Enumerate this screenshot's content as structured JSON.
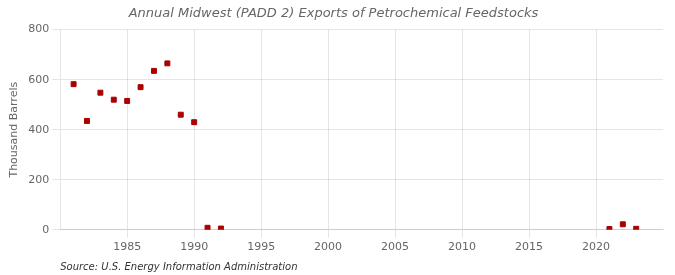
{
  "chart_data": {
    "type": "scatter",
    "title": "Annual Midwest (PADD 2) Exports of Petrochemical Feedstocks",
    "ylabel": "Thousand Barrels",
    "annotations": [
      "Source: U.S. Energy Information Administration"
    ],
    "x": [
      1981,
      1982,
      1983,
      1984,
      1985,
      1986,
      1987,
      1988,
      1989,
      1990,
      1991,
      1992,
      2021,
      2022,
      2023
    ],
    "values": [
      582,
      435,
      548,
      520,
      515,
      570,
      635,
      665,
      460,
      430,
      8,
      5,
      3,
      22,
      4
    ],
    "color": "#aa0000",
    "marker": "square",
    "xlim": [
      1980,
      2025
    ],
    "ylim": [
      0,
      800
    ],
    "xticks": [
      1985,
      1990,
      1995,
      2000,
      2005,
      2010,
      2015,
      2020
    ],
    "yticks": [
      0,
      200,
      400,
      600,
      800
    ],
    "grid": true
  }
}
